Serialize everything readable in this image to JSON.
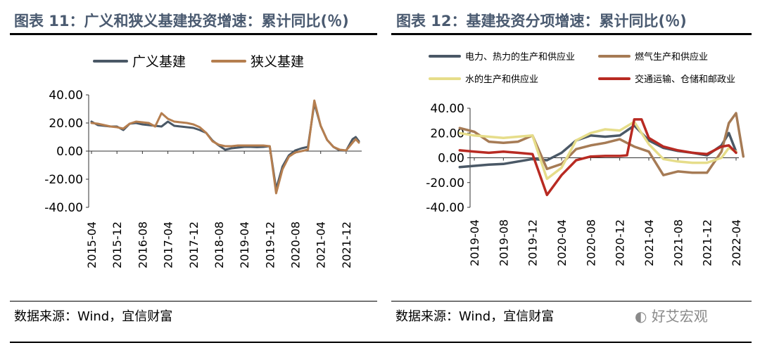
{
  "left": {
    "title": "图表 11：广义和狭义基建投资增速：累计同比(％)",
    "source": "数据来源：Wind，宜信财富"
  },
  "right": {
    "title": "图表 12：基建投资分项增速：累计同比(％)",
    "source": "数据来源：Wind，宜信财富"
  },
  "watermark": "好艾宏观",
  "chart_data": [
    {
      "type": "line",
      "ylim": [
        -40,
        40
      ],
      "yticks": [
        "40.00",
        "20.00",
        "0.00",
        "-20.00",
        "-40.00"
      ],
      "xticks": [
        "2015-04",
        "2015-12",
        "2016-08",
        "2017-04",
        "2017-12",
        "2018-08",
        "2019-04",
        "2019-12",
        "2020-08",
        "2021-04",
        "2021-12"
      ],
      "legend_position": "top",
      "series": [
        {
          "name": "广义基建",
          "color": "#4a5866",
          "points": [
            [
              "2015-04",
              21
            ],
            [
              "2015-06",
              18.5
            ],
            [
              "2015-08",
              18
            ],
            [
              "2015-10",
              17.5
            ],
            [
              "2015-12",
              17.5
            ],
            [
              "2016-02",
              15
            ],
            [
              "2016-04",
              19.5
            ],
            [
              "2016-06",
              20
            ],
            [
              "2016-08",
              19
            ],
            [
              "2016-10",
              18.5
            ],
            [
              "2016-12",
              18
            ],
            [
              "2017-02",
              17.5
            ],
            [
              "2017-04",
              21
            ],
            [
              "2017-06",
              18
            ],
            [
              "2017-08",
              17.5
            ],
            [
              "2017-10",
              17
            ],
            [
              "2017-12",
              16.5
            ],
            [
              "2018-02",
              15
            ],
            [
              "2018-04",
              13
            ],
            [
              "2018-06",
              7.5
            ],
            [
              "2018-08",
              4
            ],
            [
              "2018-10",
              1
            ],
            [
              "2018-12",
              2
            ],
            [
              "2019-02",
              2.5
            ],
            [
              "2019-04",
              3
            ],
            [
              "2019-06",
              3
            ],
            [
              "2019-08",
              2.8
            ],
            [
              "2019-10",
              3
            ],
            [
              "2019-12",
              3.5
            ],
            [
              "2020-02",
              -27
            ],
            [
              "2020-04",
              -11
            ],
            [
              "2020-06",
              -3
            ],
            [
              "2020-08",
              0.5
            ],
            [
              "2020-10",
              2
            ],
            [
              "2020-12",
              3
            ],
            [
              "2021-02",
              34
            ],
            [
              "2021-04",
              18
            ],
            [
              "2021-06",
              8
            ],
            [
              "2021-08",
              3
            ],
            [
              "2021-10",
              0.5
            ],
            [
              "2021-12",
              0.4
            ],
            [
              "2022-02",
              8.5
            ],
            [
              "2022-03",
              10
            ],
            [
              "2022-04",
              7
            ]
          ]
        },
        {
          "name": "狭义基建",
          "color": "#b57e4f",
          "points": [
            [
              "2015-04",
              20
            ],
            [
              "2015-06",
              19.5
            ],
            [
              "2015-08",
              18.5
            ],
            [
              "2015-10",
              17.5
            ],
            [
              "2015-12",
              17
            ],
            [
              "2016-02",
              16
            ],
            [
              "2016-04",
              19.5
            ],
            [
              "2016-06",
              21
            ],
            [
              "2016-08",
              20.5
            ],
            [
              "2016-10",
              20
            ],
            [
              "2016-12",
              17.5
            ],
            [
              "2017-02",
              27
            ],
            [
              "2017-04",
              23
            ],
            [
              "2017-06",
              21
            ],
            [
              "2017-08",
              20.5
            ],
            [
              "2017-10",
              20
            ],
            [
              "2017-12",
              19
            ],
            [
              "2018-02",
              17
            ],
            [
              "2018-04",
              13
            ],
            [
              "2018-06",
              7
            ],
            [
              "2018-08",
              4.5
            ],
            [
              "2018-10",
              3.5
            ],
            [
              "2018-12",
              3.5
            ],
            [
              "2019-02",
              4
            ],
            [
              "2019-04",
              4
            ],
            [
              "2019-06",
              4
            ],
            [
              "2019-08",
              4
            ],
            [
              "2019-10",
              4
            ],
            [
              "2019-12",
              3.5
            ],
            [
              "2020-02",
              -30
            ],
            [
              "2020-04",
              -13
            ],
            [
              "2020-06",
              -4
            ],
            [
              "2020-08",
              -1
            ],
            [
              "2020-10",
              0
            ],
            [
              "2020-12",
              1
            ],
            [
              "2021-02",
              36
            ],
            [
              "2021-04",
              18
            ],
            [
              "2021-06",
              8
            ],
            [
              "2021-08",
              3
            ],
            [
              "2021-10",
              1
            ],
            [
              "2021-12",
              0.5
            ],
            [
              "2022-02",
              6
            ],
            [
              "2022-03",
              8.5
            ],
            [
              "2022-04",
              6
            ]
          ]
        }
      ]
    },
    {
      "type": "line",
      "ylim": [
        -40,
        40
      ],
      "yticks": [
        "40.00",
        "20.00",
        "0.00",
        "-20.00",
        "-40.00"
      ],
      "xticks": [
        "2019-04",
        "2019-08",
        "2019-12",
        "2020-04",
        "2020-08",
        "2020-12",
        "2021-04",
        "2021-08",
        "2021-12",
        "2022-04"
      ],
      "legend_position": "top",
      "series": [
        {
          "name": "电力、热力的生产和供应业",
          "color": "#4a5866",
          "points": [
            [
              "2019-02",
              -7.5
            ],
            [
              "2019-04",
              -6.5
            ],
            [
              "2019-06",
              -5.5
            ],
            [
              "2019-08",
              -5
            ],
            [
              "2019-10",
              -3
            ],
            [
              "2019-12",
              -1
            ],
            [
              "2020-02",
              -2
            ],
            [
              "2020-04",
              4
            ],
            [
              "2020-06",
              14
            ],
            [
              "2020-08",
              18
            ],
            [
              "2020-10",
              17
            ],
            [
              "2020-12",
              18
            ],
            [
              "2021-02",
              26
            ],
            [
              "2021-04",
              14
            ],
            [
              "2021-06",
              8
            ],
            [
              "2021-08",
              5.5
            ],
            [
              "2021-10",
              4
            ],
            [
              "2021-12",
              2
            ],
            [
              "2022-02",
              10
            ],
            [
              "2022-03",
              20
            ],
            [
              "2022-04",
              5
            ]
          ]
        },
        {
          "name": "燃气生产和供应业",
          "color": "#a67b55",
          "points": [
            [
              "2019-02",
              24
            ],
            [
              "2019-04",
              21
            ],
            [
              "2019-06",
              13
            ],
            [
              "2019-08",
              12
            ],
            [
              "2019-10",
              13
            ],
            [
              "2019-12",
              18
            ],
            [
              "2020-02",
              -9
            ],
            [
              "2020-04",
              -5
            ],
            [
              "2020-06",
              7
            ],
            [
              "2020-08",
              10
            ],
            [
              "2020-10",
              12
            ],
            [
              "2020-12",
              15
            ],
            [
              "2021-02",
              9
            ],
            [
              "2021-04",
              5
            ],
            [
              "2021-06",
              -14
            ],
            [
              "2021-08",
              -11
            ],
            [
              "2021-10",
              -12
            ],
            [
              "2021-12",
              -12
            ],
            [
              "2022-02",
              5
            ],
            [
              "2022-03",
              28
            ],
            [
              "2022-04",
              36
            ],
            [
              "2022-05",
              1
            ]
          ]
        },
        {
          "name": "水的生产和供应业",
          "color": "#e6dd8a",
          "points": [
            [
              "2019-02",
              20
            ],
            [
              "2019-04",
              18
            ],
            [
              "2019-06",
              17
            ],
            [
              "2019-08",
              16
            ],
            [
              "2019-10",
              17
            ],
            [
              "2019-12",
              18
            ],
            [
              "2020-02",
              -17
            ],
            [
              "2020-04",
              -8
            ],
            [
              "2020-06",
              14
            ],
            [
              "2020-08",
              20
            ],
            [
              "2020-10",
              23
            ],
            [
              "2020-12",
              22
            ],
            [
              "2021-02",
              29
            ],
            [
              "2021-04",
              11
            ],
            [
              "2021-06",
              -1
            ],
            [
              "2021-08",
              -3
            ],
            [
              "2021-10",
              -4
            ],
            [
              "2021-12",
              -4
            ],
            [
              "2022-02",
              0
            ],
            [
              "2022-03",
              8
            ],
            [
              "2022-04",
              5
            ]
          ]
        },
        {
          "name": "交通运输、仓储和邮政业",
          "color": "#b82a22",
          "points": [
            [
              "2019-02",
              6
            ],
            [
              "2019-04",
              5
            ],
            [
              "2019-06",
              4
            ],
            [
              "2019-08",
              5
            ],
            [
              "2019-10",
              4
            ],
            [
              "2019-12",
              3
            ],
            [
              "2020-02",
              -30
            ],
            [
              "2020-04",
              -14
            ],
            [
              "2020-06",
              -2
            ],
            [
              "2020-08",
              1
            ],
            [
              "2020-10",
              1.5
            ],
            [
              "2020-12",
              1.5
            ],
            [
              "2021-01",
              2
            ],
            [
              "2021-02",
              31
            ],
            [
              "2021-03",
              31
            ],
            [
              "2021-04",
              16
            ],
            [
              "2021-06",
              9
            ],
            [
              "2021-08",
              6
            ],
            [
              "2021-10",
              4
            ],
            [
              "2021-12",
              3
            ],
            [
              "2022-02",
              9
            ],
            [
              "2022-03",
              10
            ],
            [
              "2022-04",
              4
            ]
          ]
        }
      ]
    }
  ]
}
